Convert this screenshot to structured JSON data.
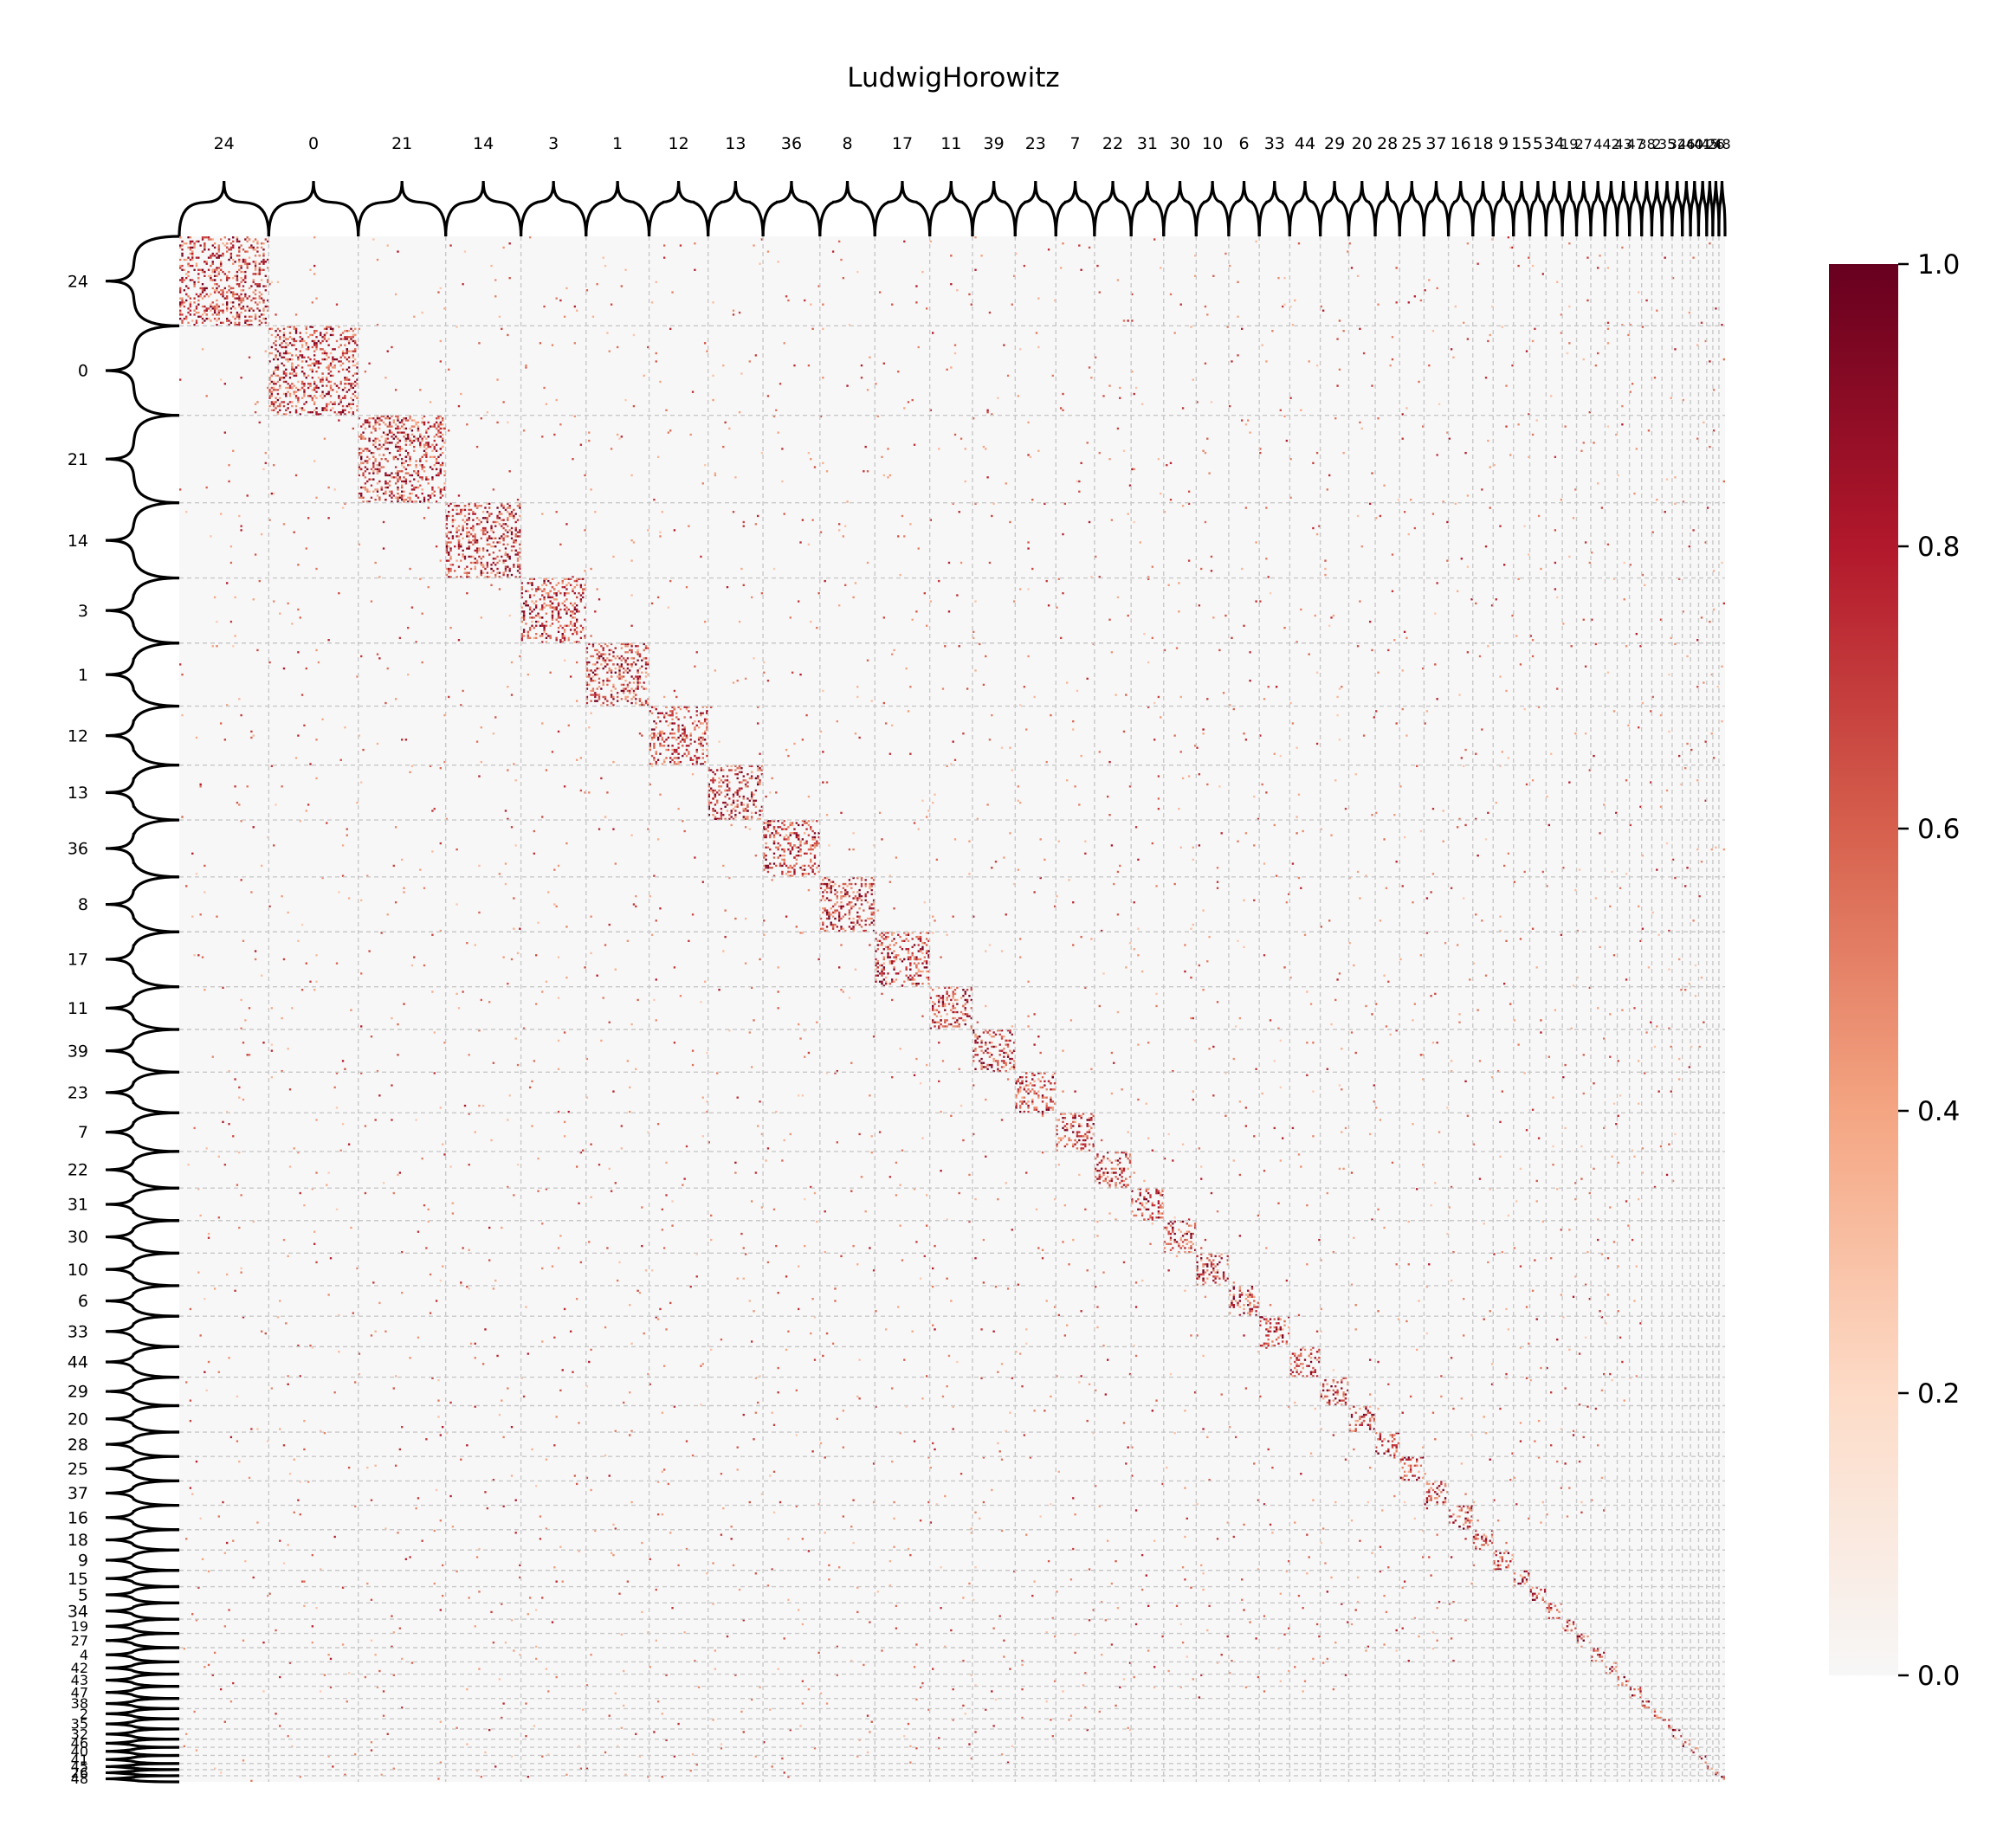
{
  "chart_data": {
    "type": "heatmap",
    "title": "LudwigHorowitz",
    "xlabel": "",
    "ylabel": "",
    "cluster_order": [
      "24",
      "0",
      "21",
      "14",
      "3",
      "1",
      "12",
      "13",
      "36",
      "8",
      "17",
      "11",
      "39",
      "23",
      "7",
      "22",
      "31",
      "30",
      "10",
      "6",
      "33",
      "44",
      "29",
      "20",
      "28",
      "25",
      "37",
      "16",
      "18",
      "9",
      "15",
      "5",
      "34",
      "19",
      "27",
      "4",
      "42",
      "43",
      "47",
      "38",
      "2",
      "35",
      "32",
      "46",
      "40",
      "41",
      "45",
      "26",
      "48"
    ],
    "cluster_sizes": [
      44,
      44,
      43,
      37,
      32,
      31,
      29,
      27,
      28,
      27,
      27,
      21,
      21,
      20,
      19,
      18,
      16,
      16,
      16,
      15,
      15,
      15,
      14,
      13,
      12,
      12,
      12,
      12,
      10,
      10,
      8,
      8,
      8,
      7,
      7,
      7,
      6,
      6,
      6,
      5,
      5,
      5,
      5,
      4,
      4,
      4,
      3,
      3,
      3
    ],
    "value_range": [
      0.0,
      1.0
    ],
    "colorbar": {
      "ticks": [
        0.0,
        0.2,
        0.4,
        0.6,
        0.8,
        1.0
      ],
      "tick_labels": [
        "0.0",
        "0.2",
        "0.4",
        "0.6",
        "0.8",
        "1.0"
      ],
      "colormap": "RdBu_r (upper half)",
      "colors": [
        "#f7f7f7",
        "#fddbc7",
        "#f4a582",
        "#d6604d",
        "#b2182b",
        "#67001f"
      ]
    },
    "grid": true,
    "pattern": "block-diagonal: dense cells within each cluster, sparse cells between clusters"
  }
}
